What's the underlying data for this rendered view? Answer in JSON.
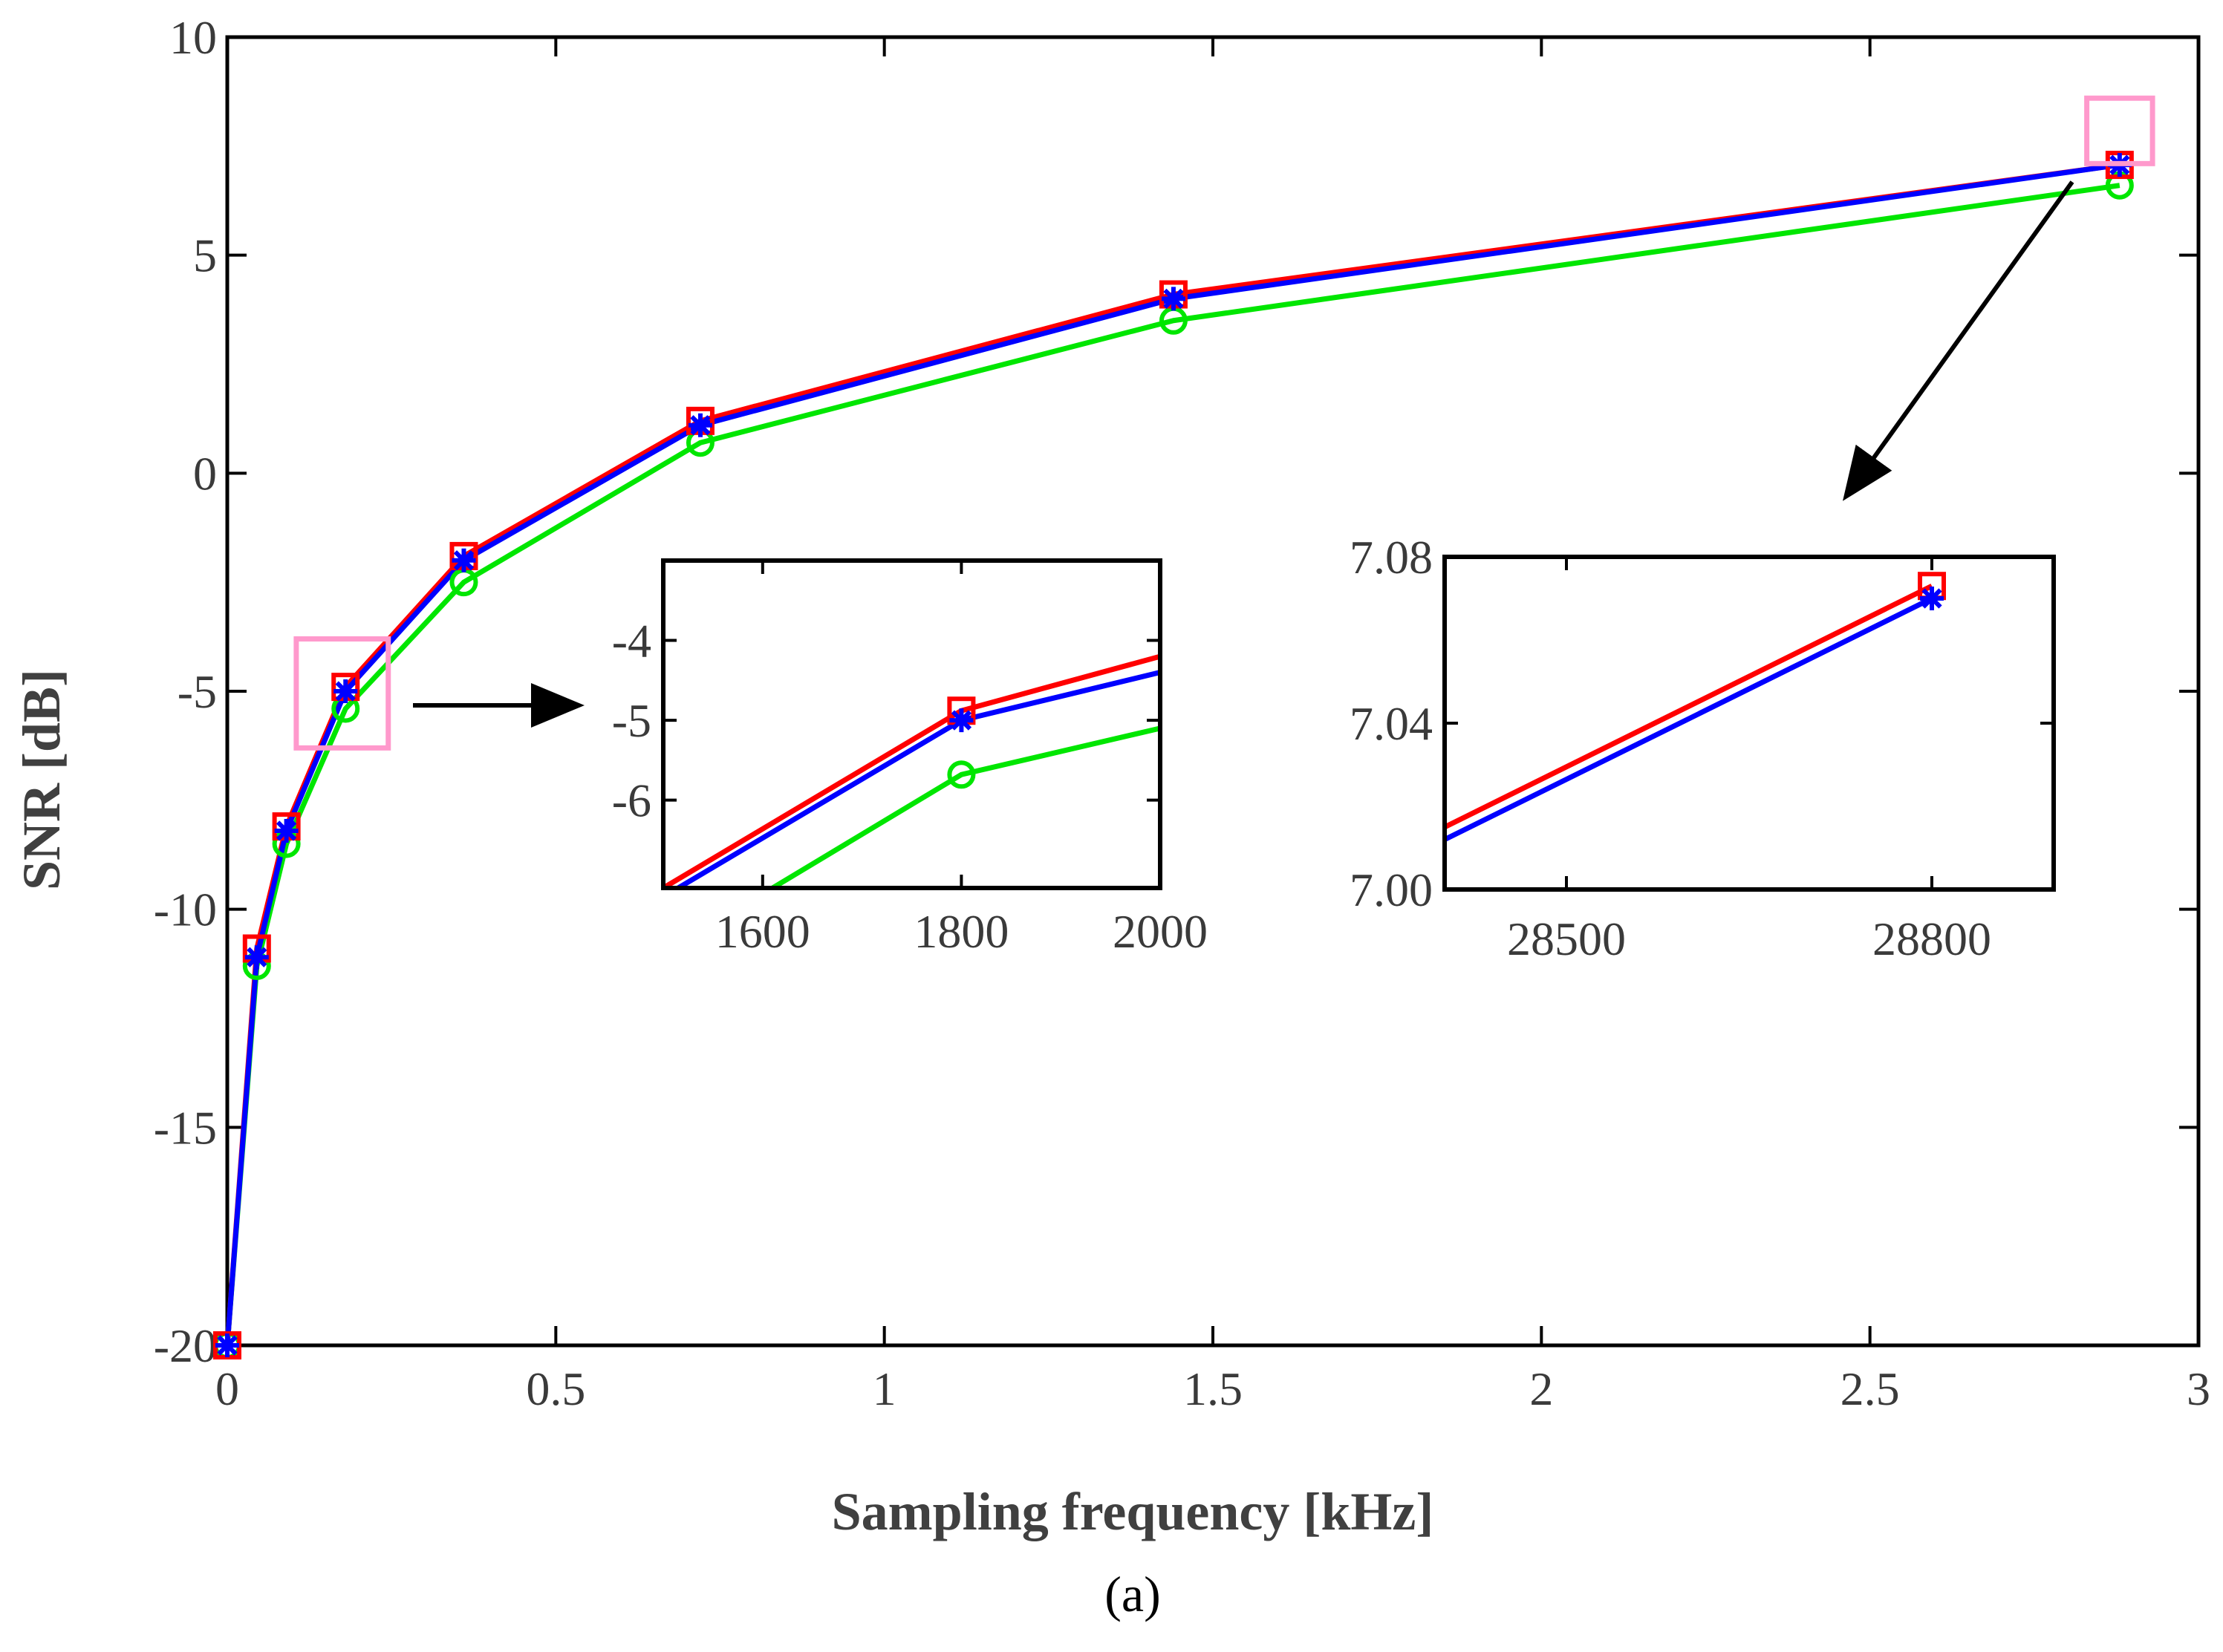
{
  "chart_data": [
    {
      "id": "main",
      "type": "line",
      "xlabel": "Sampling frequency [kHz]",
      "ylabel": "SNR [dB]",
      "panel_label": "(a)",
      "xlim": [
        0,
        3
      ],
      "ylim": [
        -20,
        10
      ],
      "xticks": [
        0,
        0.5,
        1,
        1.5,
        2,
        2.5,
        3
      ],
      "xtick_labels": [
        "0",
        "0.5",
        "1",
        "1.5",
        "2",
        "2.5",
        "3"
      ],
      "yticks": [
        -20,
        -15,
        -10,
        -5,
        0,
        5,
        10
      ],
      "ytick_labels": [
        "-20",
        "-15",
        "-10",
        "-5",
        "0",
        "5",
        "10"
      ],
      "x": [
        0,
        0.045,
        0.09,
        0.18,
        0.36,
        0.72,
        1.44,
        2.88
      ],
      "series": [
        {
          "name": "red",
          "color": "#ff0000",
          "marker": "square",
          "values": [
            -20,
            -10.9,
            -8.1,
            -4.9,
            -1.9,
            1.2,
            4.1,
            7.07
          ]
        },
        {
          "name": "blue",
          "color": "#0000ff",
          "marker": "star",
          "values": [
            -20,
            -11.1,
            -8.2,
            -5.0,
            -2.0,
            1.1,
            4.0,
            7.07
          ]
        },
        {
          "name": "green",
          "color": "#00e600",
          "marker": "circle",
          "values": [
            -20,
            -11.3,
            -8.5,
            -5.4,
            -2.5,
            0.7,
            3.5,
            6.6
          ]
        }
      ],
      "zoom_boxes": [
        {
          "x": [
            0.105,
            0.245
          ],
          "y": [
            -6.3,
            -3.8
          ],
          "color": "#ff99cc"
        },
        {
          "x": [
            2.83,
            2.93
          ],
          "y": [
            7.1,
            8.6
          ],
          "color": "#ff99cc"
        }
      ]
    },
    {
      "id": "inset-left",
      "type": "line",
      "xlim": [
        1500,
        2000
      ],
      "ylim": [
        -7.1,
        -3.0
      ],
      "xticks": [
        1600,
        1800,
        2000
      ],
      "xtick_labels": [
        "1600",
        "1800",
        "2000"
      ],
      "yticks": [
        -6,
        -5,
        -4
      ],
      "ytick_labels": [
        "-6",
        "-5",
        "-4"
      ],
      "series": [
        {
          "name": "red",
          "color": "#ff0000",
          "marker": "square",
          "x": [
            1500,
            1800,
            2000
          ],
          "values": [
            -7.1,
            -4.88,
            -4.2
          ]
        },
        {
          "name": "blue",
          "color": "#0000ff",
          "marker": "star",
          "x": [
            1515,
            1800,
            2000
          ],
          "values": [
            -7.1,
            -5.0,
            -4.4
          ]
        },
        {
          "name": "green",
          "color": "#00e600",
          "marker": "circle",
          "x": [
            1610,
            1800,
            2000
          ],
          "values": [
            -7.1,
            -5.68,
            -5.1
          ]
        }
      ]
    },
    {
      "id": "inset-right",
      "type": "line",
      "xlim": [
        28400,
        28900
      ],
      "ylim": [
        7.0,
        7.08
      ],
      "xticks": [
        28500,
        28800
      ],
      "xtick_labels": [
        "28500",
        "28800"
      ],
      "yticks": [
        7.0,
        7.04,
        7.08
      ],
      "ytick_labels": [
        "7.00",
        "7.04",
        "7.08"
      ],
      "series": [
        {
          "name": "red",
          "color": "#ff0000",
          "marker": "square",
          "x": [
            28400,
            28800
          ],
          "values": [
            7.015,
            7.073
          ]
        },
        {
          "name": "blue",
          "color": "#0000ff",
          "marker": "star",
          "x": [
            28400,
            28800
          ],
          "values": [
            7.012,
            7.07
          ]
        }
      ]
    }
  ]
}
